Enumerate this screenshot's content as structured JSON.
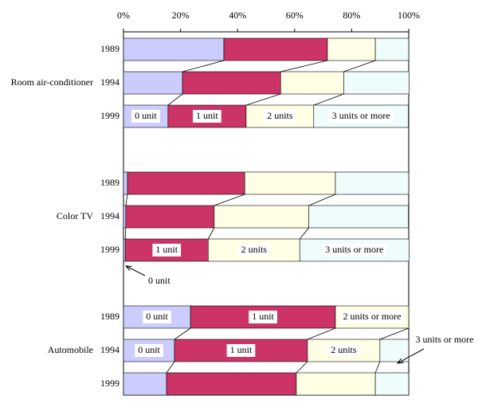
{
  "chart_data": {
    "type": "bar",
    "orientation": "horizontal",
    "stacked": true,
    "groups": [
      "Room air-conditioner",
      "Color TV",
      "Automobile"
    ],
    "categories": [
      "1989",
      "1994",
      "1999",
      "1989",
      "1994",
      "1999",
      "1989",
      "1994",
      "1999"
    ],
    "series": [
      {
        "name": "0 unit",
        "color": "#ccccff",
        "values": [
          35.2,
          20.7,
          15.6,
          1.4,
          0.8,
          0.6,
          23.5,
          17.9,
          15.1
        ]
      },
      {
        "name": "1 unit",
        "color": "#cc3366",
        "values": [
          36.3,
          34.4,
          27.4,
          41.1,
          31.0,
          29.1,
          50.8,
          46.6,
          45.5
        ]
      },
      {
        "name": "2 units",
        "color": "#ffffe5",
        "values": [
          16.8,
          22.1,
          23.7,
          31.8,
          33.2,
          32.1,
          25.7,
          25.4,
          27.7
        ]
      },
      {
        "name": "3 units or more",
        "color": "#eefcfc",
        "values": [
          11.7,
          22.9,
          33.2,
          25.7,
          34.9,
          38.3,
          null,
          10.1,
          11.7
        ]
      }
    ],
    "bar_labels": [
      [
        null,
        null,
        null,
        null
      ],
      [
        null,
        null,
        null,
        null
      ],
      [
        "0 unit",
        "1 unit",
        "2 units",
        "3 units or more"
      ],
      [
        null,
        null,
        null,
        null
      ],
      [
        null,
        null,
        null,
        null
      ],
      [
        null,
        "1 unit",
        "2 units",
        "3 units or more"
      ],
      [
        "0 unit",
        "1 unit",
        "2 units or more",
        null
      ],
      [
        "0 unit",
        "1 unit",
        "2 units",
        null
      ],
      [
        null,
        null,
        null,
        null
      ]
    ],
    "annotations": [
      "0 unit",
      "3 units or more"
    ],
    "xlim": [
      0,
      100
    ],
    "xticks": [
      {
        "value": 0,
        "label": "0%"
      },
      {
        "value": 20,
        "label": "20%"
      },
      {
        "value": 40,
        "label": "40%"
      },
      {
        "value": 60,
        "label": "60%"
      },
      {
        "value": 80,
        "label": "80%"
      },
      {
        "value": 100,
        "label": "100%"
      }
    ]
  }
}
